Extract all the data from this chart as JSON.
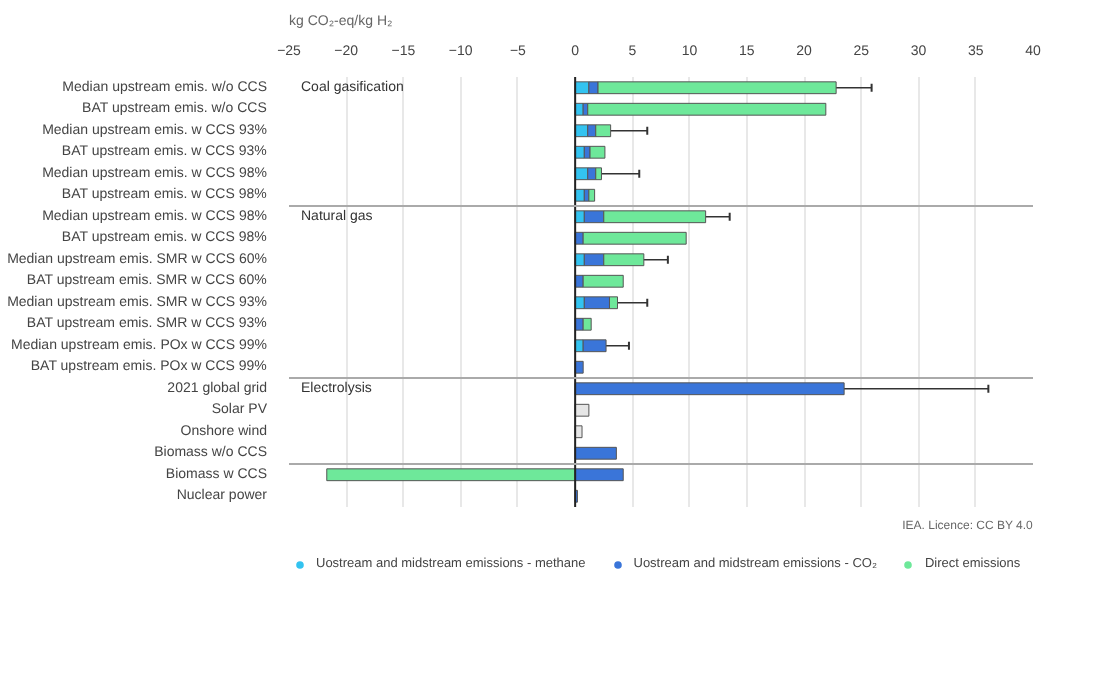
{
  "chart_data": {
    "type": "bar",
    "orientation": "horizontal",
    "stacked": true,
    "xlabel": "kg CO₂-eq/kg H₂",
    "categories": [
      "Median upstream emis. w/o CCS",
      "BAT upstream emis. w/o CCS",
      "Median upstream emis. w CCS 93%",
      "BAT upstream emis. w CCS 93%",
      "Median upstream emis. w CCS 98%",
      "BAT upstream emis. w CCS 98%",
      "Median upstream emis. w CCS 98%",
      "BAT upstream emis. w CCS 98%",
      "Median upstream emis. SMR w CCS 60%",
      "BAT upstream emis. SMR w CCS 60%",
      "Median upstream emis. SMR w CCS 93%",
      "BAT upstream emis. SMR w CCS 93%",
      "Median upstream emis. POx w CCS 99%",
      "BAT upstream emis. POx w CCS 99%",
      "2021 global grid",
      "Solar PV",
      "Onshore wind",
      "Biomass w/o CCS",
      "Biomass w CCS",
      "Nuclear power"
    ],
    "series": [
      {
        "name": "Uostream and midstream emissions - methane",
        "color": "#33c3f0",
        "values": [
          1.2,
          0.7,
          1.1,
          0.8,
          1.1,
          0.8,
          0.8,
          null,
          0.8,
          null,
          0.8,
          null,
          0.7,
          null,
          null,
          null,
          null,
          null,
          null,
          null
        ]
      },
      {
        "name": "Uostream and midstream emissions - CO₂",
        "color": "#3a75d9",
        "values": [
          0.8,
          0.4,
          0.7,
          0.5,
          0.7,
          0.4,
          1.7,
          0.7,
          1.7,
          0.7,
          2.2,
          0.7,
          2.0,
          0.7,
          23.5,
          null,
          null,
          3.6,
          4.2,
          0.2
        ],
        "errors": [
          [
            21.9,
            25.9
          ],
          null,
          [
            2.6,
            6.3
          ],
          null,
          [
            1.6,
            5.6
          ],
          null,
          [
            9.8,
            13.5
          ],
          null,
          [
            4.4,
            8.1
          ],
          null,
          [
            1.6,
            6.3
          ],
          null,
          [
            0.8,
            4.7
          ],
          null,
          [
            3.6,
            36.1
          ],
          null,
          null,
          null,
          null,
          null
        ]
      },
      {
        "name": "Direct emissions",
        "color": "#6ee89a",
        "values": [
          20.8,
          20.8,
          1.3,
          1.3,
          0.5,
          0.5,
          8.9,
          9.0,
          3.5,
          3.5,
          0.7,
          0.7,
          null,
          null,
          null,
          null,
          null,
          null,
          -21.7,
          null
        ]
      },
      {
        "color": "#e6e6e6",
        "values": [
          null,
          null,
          null,
          null,
          null,
          null,
          null,
          null,
          null,
          null,
          null,
          null,
          null,
          null,
          null,
          1.2,
          0.6,
          null,
          null,
          null
        ]
      }
    ],
    "xlim": [
      -25,
      40
    ],
    "xticks": [
      -25,
      -20,
      -15,
      -10,
      -5,
      0,
      5,
      10,
      15,
      20,
      25,
      30,
      35,
      40
    ],
    "grid": "x",
    "legend": "bottom",
    "annotations": [
      "Coal gasification",
      "Natural gas",
      "Electrolysis",
      "IEA. Licence: CC BY 4.0"
    ]
  }
}
